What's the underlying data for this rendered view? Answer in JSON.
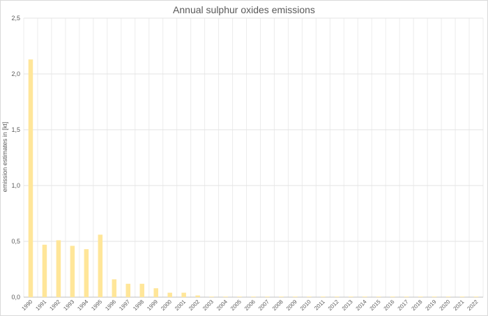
{
  "chart_data": {
    "type": "bar",
    "title": "Annual sulphur oxides emissions",
    "xlabel": "",
    "ylabel": "emission estimates in [kt]",
    "ylim": [
      0,
      2.5
    ],
    "yticks": [
      "0,0",
      "0,5",
      "1,0",
      "1,5",
      "2,0",
      "2,5"
    ],
    "ytick_values": [
      0,
      0.5,
      1.0,
      1.5,
      2.0,
      2.5
    ],
    "grid": true,
    "bar_color": "#ffe699",
    "categories": [
      "1990",
      "1991",
      "1992",
      "1993",
      "1994",
      "1995",
      "1996",
      "1997",
      "1998",
      "1999",
      "2000",
      "2001",
      "2002",
      "2003",
      "2004",
      "2005",
      "2006",
      "2007",
      "2008",
      "2009",
      "2010",
      "2011",
      "2012",
      "2013",
      "2014",
      "2015",
      "2016",
      "2017",
      "2018",
      "2019",
      "2020",
      "2021",
      "2022"
    ],
    "values": [
      2.13,
      0.47,
      0.51,
      0.46,
      0.43,
      0.56,
      0.16,
      0.12,
      0.12,
      0.08,
      0.04,
      0.04,
      0.015,
      0.005,
      0.005,
      0.005,
      0.005,
      0.005,
      0.005,
      0.005,
      0.005,
      0.005,
      0.005,
      0.005,
      0.005,
      0.005,
      0.005,
      0.005,
      0.005,
      0.005,
      0.005,
      0.005,
      0.005
    ]
  }
}
